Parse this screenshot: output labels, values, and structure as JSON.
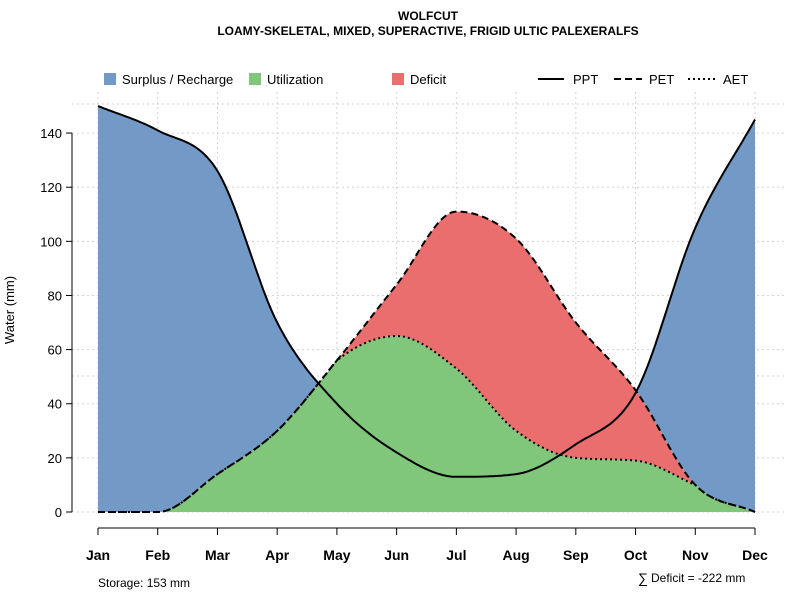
{
  "chart_data": {
    "type": "area",
    "title": "WOLFCUT",
    "subtitle": "LOAMY-SKELETAL, MIXED, SUPERACTIVE, FRIGID ULTIC PALEXERALFS",
    "categories": [
      "Jan",
      "Feb",
      "Mar",
      "Apr",
      "May",
      "Jun",
      "Jul",
      "Aug",
      "Sep",
      "Oct",
      "Nov",
      "Dec"
    ],
    "ylabel": "Water (mm)",
    "ylim": [
      0,
      150
    ],
    "yticks": [
      0,
      20,
      40,
      60,
      80,
      100,
      120,
      140
    ],
    "grid": true,
    "series": [
      {
        "name": "PPT",
        "style": "solid",
        "values": [
          150,
          141,
          126,
          70,
          40,
          22,
          13,
          14,
          25,
          44,
          105,
          145
        ]
      },
      {
        "name": "PET",
        "style": "dashed",
        "values": [
          0,
          0,
          14,
          30,
          56,
          84,
          111,
          101,
          70,
          45,
          10,
          0
        ]
      },
      {
        "name": "AET",
        "style": "dotted",
        "values": [
          0,
          0,
          14,
          30,
          56,
          65,
          53,
          30,
          20,
          19,
          10,
          0
        ]
      }
    ],
    "fill_legend": [
      {
        "label": "Surplus / Recharge",
        "color": "#7399c6"
      },
      {
        "label": "Utilization",
        "color": "#80c77c"
      },
      {
        "label": "Deficit",
        "color": "#eb6e6e"
      }
    ],
    "line_legend": [
      {
        "label": "PPT",
        "style": "solid"
      },
      {
        "label": "PET",
        "style": "dashed"
      },
      {
        "label": "AET",
        "style": "dotted"
      }
    ],
    "legend_position": "top",
    "footer_left": "Storage: 153 mm",
    "footer_right_symbol": "∑",
    "footer_right": "Deficit = -222 mm"
  }
}
